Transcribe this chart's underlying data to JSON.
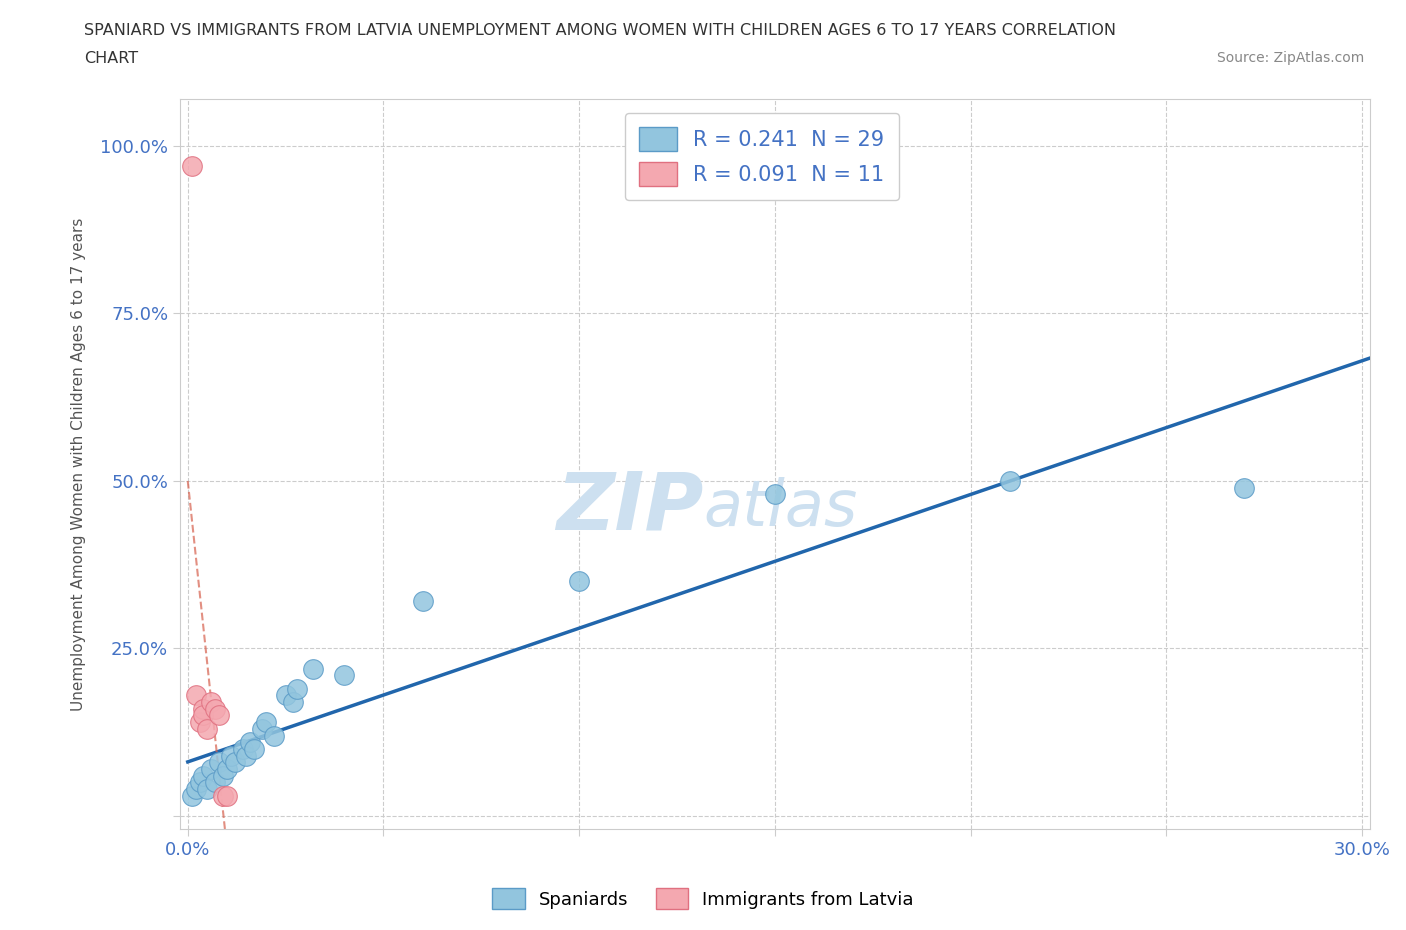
{
  "title_line1": "SPANIARD VS IMMIGRANTS FROM LATVIA UNEMPLOYMENT AMONG WOMEN WITH CHILDREN AGES 6 TO 17 YEARS CORRELATION",
  "title_line2": "CHART",
  "source_text": "Source: ZipAtlas.com",
  "ylabel": "Unemployment Among Women with Children Ages 6 to 17 years",
  "xlim": [
    -0.002,
    0.302
  ],
  "ylim": [
    -0.02,
    1.07
  ],
  "x_ticks": [
    0.0,
    0.05,
    0.1,
    0.15,
    0.2,
    0.25,
    0.3
  ],
  "x_tick_labels": [
    "0.0%",
    "",
    "",
    "",
    "",
    "",
    "30.0%"
  ],
  "y_ticks": [
    0.0,
    0.25,
    0.5,
    0.75,
    1.0
  ],
  "y_tick_labels": [
    "",
    "25.0%",
    "50.0%",
    "75.0%",
    "100.0%"
  ],
  "spaniards_x": [
    0.001,
    0.002,
    0.003,
    0.004,
    0.005,
    0.006,
    0.007,
    0.008,
    0.009,
    0.01,
    0.011,
    0.012,
    0.014,
    0.015,
    0.016,
    0.017,
    0.019,
    0.02,
    0.022,
    0.025,
    0.027,
    0.028,
    0.032,
    0.04,
    0.06,
    0.1,
    0.15,
    0.21,
    0.27
  ],
  "spaniards_y": [
    0.03,
    0.04,
    0.05,
    0.06,
    0.04,
    0.07,
    0.05,
    0.08,
    0.06,
    0.07,
    0.09,
    0.08,
    0.1,
    0.09,
    0.11,
    0.1,
    0.13,
    0.14,
    0.12,
    0.18,
    0.17,
    0.19,
    0.22,
    0.21,
    0.32,
    0.35,
    0.48,
    0.5,
    0.49
  ],
  "latvia_x": [
    0.001,
    0.002,
    0.003,
    0.004,
    0.004,
    0.005,
    0.006,
    0.007,
    0.008,
    0.009,
    0.01
  ],
  "latvia_y": [
    0.97,
    0.18,
    0.14,
    0.16,
    0.15,
    0.13,
    0.17,
    0.16,
    0.15,
    0.03,
    0.03
  ],
  "spaniards_R": 0.241,
  "spaniards_N": 29,
  "latvia_R": 0.091,
  "latvia_N": 11,
  "spaniards_color": "#92c5de",
  "spaniards_edge": "#5b9bc7",
  "latvia_color": "#f4a8b0",
  "latvia_edge": "#e07080",
  "trend_blue_color": "#2166ac",
  "trend_pink_color": "#d6604d",
  "watermark_zip": "ZIP",
  "watermark_atlas": "atlas",
  "watermark_color": "#cde0f0",
  "background_color": "#ffffff",
  "grid_color": "#cccccc",
  "grid_style": "--",
  "title_color": "#333333",
  "axis_label_color": "#555555",
  "tick_color": "#4472c4",
  "legend_label_color": "#4472c4",
  "source_color": "#888888"
}
